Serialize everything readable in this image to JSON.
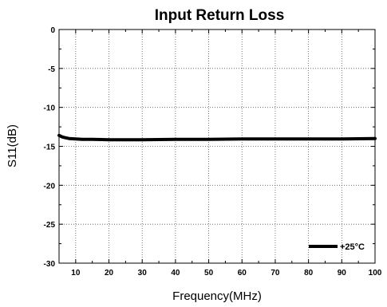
{
  "chart_data": {
    "type": "line",
    "title": "Input Return Loss",
    "xlabel": "Frequency(MHz)",
    "ylabel": "S11(dB)",
    "xlim": [
      5,
      100
    ],
    "ylim": [
      -30,
      0
    ],
    "x_ticks": [
      10,
      20,
      30,
      40,
      50,
      60,
      70,
      80,
      90,
      100
    ],
    "x_tick_labels": [
      "10",
      "20",
      "30",
      "40",
      "50",
      "60",
      "70",
      "80",
      "90",
      "100"
    ],
    "y_ticks": [
      0,
      -5,
      -10,
      -15,
      -20,
      -25,
      -30
    ],
    "y_tick_labels": [
      "0",
      "-5",
      "-10",
      "-15",
      "-20",
      "-25",
      "-30"
    ],
    "grid": true,
    "legend_position": "bottom-right",
    "series": [
      {
        "name": "+25°C",
        "color": "#000000",
        "x": [
          5,
          6,
          7,
          8,
          10,
          12,
          15,
          20,
          25,
          30,
          40,
          50,
          60,
          70,
          80,
          90,
          100
        ],
        "y": [
          -13.6,
          -13.8,
          -13.9,
          -14.0,
          -14.05,
          -14.1,
          -14.1,
          -14.15,
          -14.15,
          -14.15,
          -14.1,
          -14.1,
          -14.05,
          -14.05,
          -14.05,
          -14.05,
          -14.0
        ]
      }
    ]
  }
}
